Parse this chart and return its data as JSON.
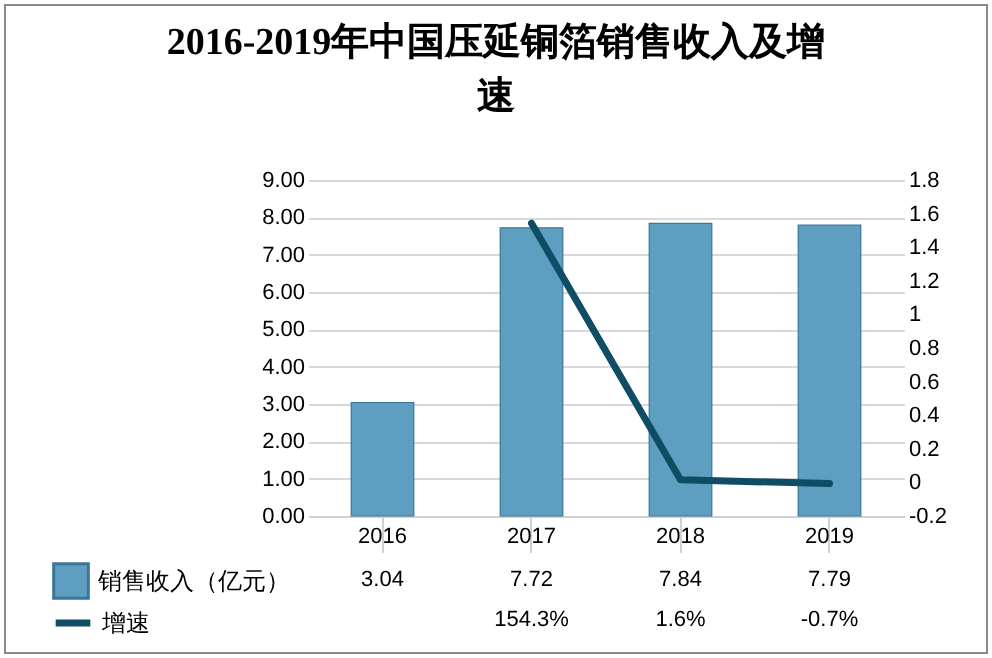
{
  "chart_data": {
    "type": "bar",
    "title": "2016-2019年中国压延铜箔销售收入及增速",
    "categories": [
      "2016",
      "2017",
      "2018",
      "2019"
    ],
    "series": [
      {
        "name": "销售收入（亿元）",
        "color": "#5e9ec0",
        "values": [
          3.04,
          7.72,
          7.84,
          7.79
        ],
        "value_labels": [
          "3.04",
          "7.72",
          "7.84",
          "7.79"
        ]
      },
      {
        "name": "增速",
        "type": "line",
        "axis": "y2",
        "color": "#0e4d64",
        "values": [
          null,
          1.543,
          0.016,
          -0.007
        ],
        "value_labels": [
          null,
          "154.3%",
          "1.6%",
          "-0.7%"
        ]
      }
    ],
    "ylim": [
      0,
      9
    ],
    "yticks": [
      {
        "value": 0,
        "label": "0.00"
      },
      {
        "value": 1,
        "label": "1.00"
      },
      {
        "value": 2,
        "label": "2.00"
      },
      {
        "value": 3,
        "label": "3.00"
      },
      {
        "value": 4,
        "label": "4.00"
      },
      {
        "value": 5,
        "label": "5.00"
      },
      {
        "value": 6,
        "label": "6.00"
      },
      {
        "value": 7,
        "label": "7.00"
      },
      {
        "value": 8,
        "label": "8.00"
      },
      {
        "value": 9,
        "label": "9.00"
      }
    ],
    "y2lim": [
      -0.2,
      1.8
    ],
    "y2ticks": [
      -0.2,
      0,
      0.2,
      0.4,
      0.6,
      0.8,
      1,
      1.2,
      1.4,
      1.6,
      1.8
    ],
    "grid": "y",
    "legend": "bottom left",
    "marker": "none",
    "line_style": "solid"
  }
}
